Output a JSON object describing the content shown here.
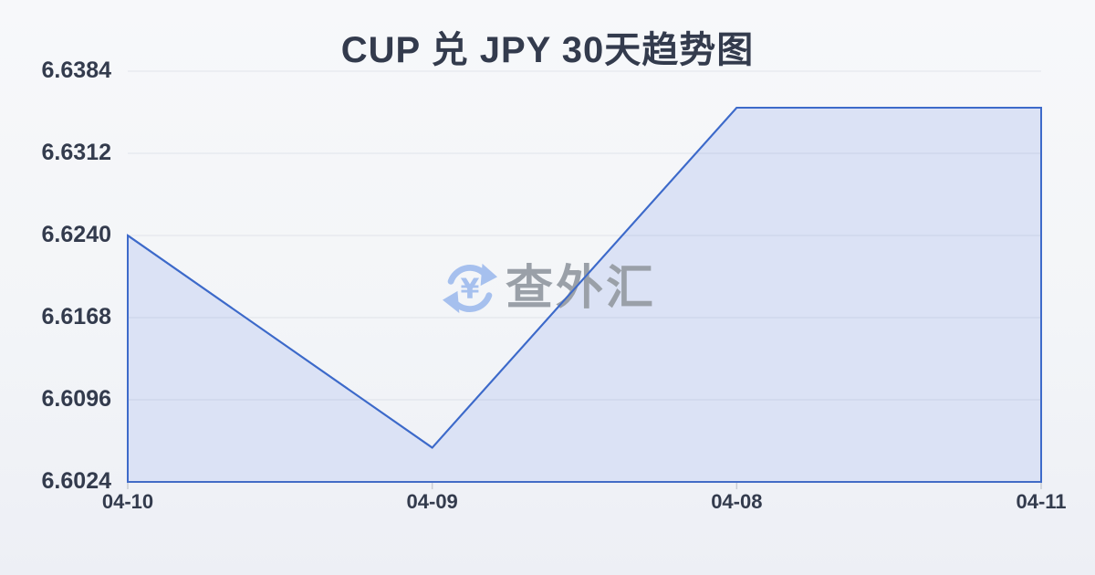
{
  "page": {
    "title": "CUP 兑 JPY 30天趋势图"
  },
  "watermark": {
    "icon": "currency-exchange-icon",
    "text": "查外汇"
  },
  "chart_data": {
    "type": "area",
    "title": "CUP 兑 JPY 30天趋势图",
    "categories": [
      "04-10",
      "04-09",
      "04-08",
      "04-11"
    ],
    "values": [
      6.624,
      6.6054,
      6.6352,
      6.6352
    ],
    "series_name": "CUP/JPY",
    "xlabel": "",
    "ylabel": "",
    "ylim": [
      6.6024,
      6.6384
    ],
    "y_ticks": [
      6.6024,
      6.6096,
      6.6168,
      6.624,
      6.6312,
      6.6384
    ],
    "y_tick_decimals": 4,
    "grid": true,
    "legend": "none",
    "colors": {
      "line": "#3d6aca",
      "fill": "#dbe2f5",
      "grid": "rgba(120,132,158,0.16)",
      "tick_mark": "#c9ccd4",
      "label": "#333b4d",
      "title": "#333b4d",
      "watermark_icon": "#a6c0ee",
      "watermark_text": "#9aa0a8"
    }
  }
}
